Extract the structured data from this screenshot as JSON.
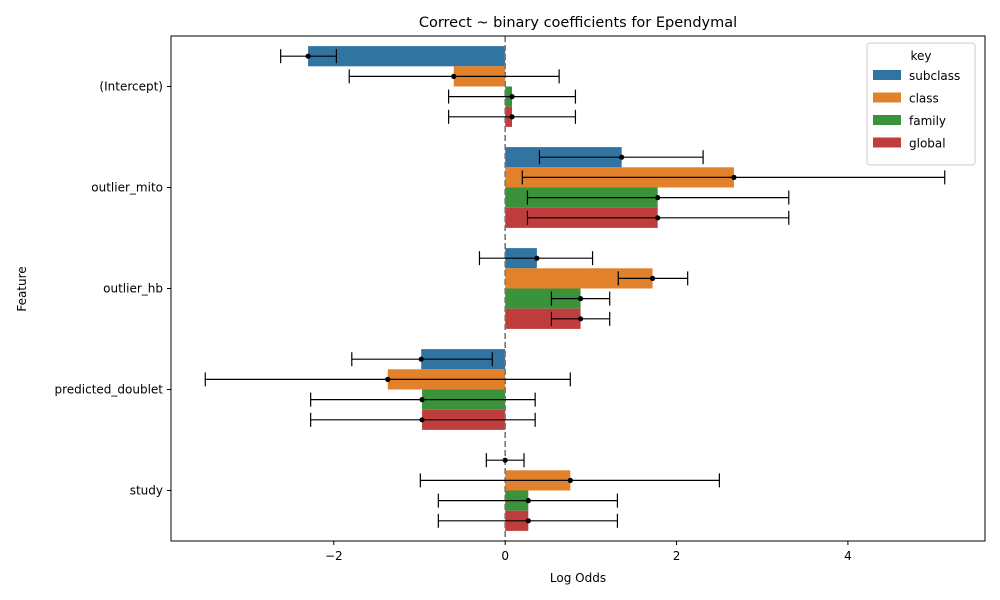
{
  "chart_data": {
    "type": "bar",
    "orientation": "horizontal",
    "title": "Correct ~ binary coefficients for Ependymal",
    "xlabel": "Log Odds",
    "ylabel": "Feature",
    "xlim": [
      -3.9,
      5.6
    ],
    "x_ticks": [
      -2,
      0,
      2,
      4
    ],
    "x_tick_labels": [
      "−2",
      "0",
      "2",
      "4"
    ],
    "reference_line_x": 0,
    "grid": false,
    "legend": {
      "title": "key",
      "placement": "top-right"
    },
    "categories": [
      "(Intercept)",
      "outlier_mito",
      "outlier_hb",
      "predicted_doublet",
      "study"
    ],
    "series": [
      {
        "name": "subclass",
        "color": "#3274a1",
        "values": [
          -2.3,
          1.36,
          0.37,
          -0.98,
          0.0
        ],
        "ci_low": [
          -2.62,
          0.4,
          -0.3,
          -1.79,
          -0.22
        ],
        "ci_high": [
          -1.97,
          2.31,
          1.02,
          -0.15,
          0.22
        ]
      },
      {
        "name": "class",
        "color": "#e1812c",
        "values": [
          -0.6,
          2.67,
          1.72,
          -1.37,
          0.76
        ],
        "ci_low": [
          -1.82,
          0.2,
          1.32,
          -3.5,
          -0.99
        ],
        "ci_high": [
          0.63,
          5.13,
          2.13,
          0.76,
          2.5
        ]
      },
      {
        "name": "family",
        "color": "#3a923a",
        "values": [
          0.08,
          1.78,
          0.88,
          -0.97,
          0.27
        ],
        "ci_low": [
          -0.66,
          0.26,
          0.54,
          -2.27,
          -0.78
        ],
        "ci_high": [
          0.82,
          3.31,
          1.22,
          0.35,
          1.31
        ]
      },
      {
        "name": "global",
        "color": "#c03d3e",
        "values": [
          0.08,
          1.78,
          0.88,
          -0.97,
          0.27
        ],
        "ci_low": [
          -0.66,
          0.26,
          0.54,
          -2.27,
          -0.78
        ],
        "ci_high": [
          0.82,
          3.31,
          1.22,
          0.35,
          1.31
        ]
      }
    ]
  }
}
